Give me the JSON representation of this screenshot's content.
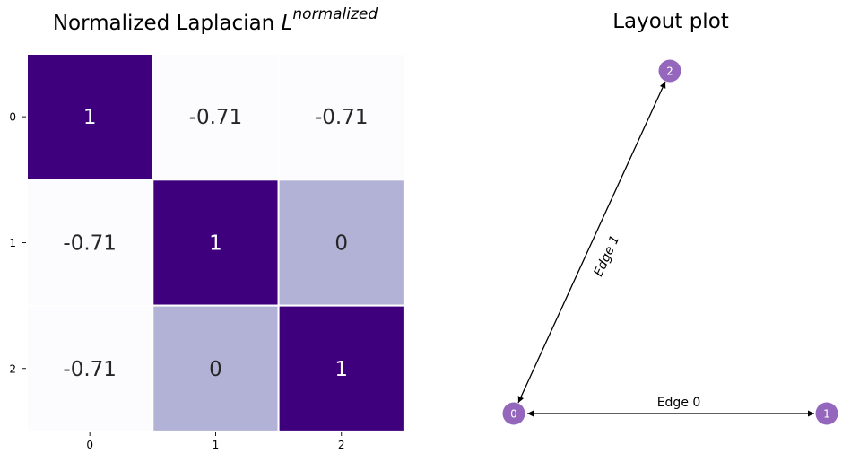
{
  "heatmap": {
    "title_main": "Normalized Laplacian ",
    "title_symbol": "L",
    "title_superscript": "normalized",
    "row_labels": [
      "0",
      "1",
      "2"
    ],
    "col_labels": [
      "0",
      "1",
      "2"
    ],
    "cell_labels": [
      [
        "1",
        "-0.71",
        "-0.71"
      ],
      [
        "-0.71",
        "1",
        "0"
      ],
      [
        "-0.71",
        "0",
        "1"
      ]
    ]
  },
  "layout": {
    "title": "Layout plot",
    "nodes": [
      "0",
      "1",
      "2"
    ],
    "edges": [
      {
        "label": "Edge 0",
        "source": "0",
        "target": "1"
      },
      {
        "label": "Edge 1",
        "source": "0",
        "target": "2"
      }
    ]
  },
  "colors": {
    "dark": "#3f007d",
    "mid": "#b2b2d6",
    "light": "#fcfbfd",
    "node": "#9467bd",
    "dark_text": "#ffffff",
    "light_text": "#262626"
  },
  "chart_data": [
    {
      "type": "heatmap",
      "title": "Normalized Laplacian L^normalized",
      "xlabel": "",
      "ylabel": "",
      "x": [
        "0",
        "1",
        "2"
      ],
      "y": [
        "0",
        "1",
        "2"
      ],
      "values": [
        [
          1,
          -0.71,
          -0.71
        ],
        [
          -0.71,
          1,
          0
        ],
        [
          -0.71,
          0,
          1
        ]
      ],
      "grid": false
    },
    {
      "type": "diagram",
      "title": "Layout plot",
      "nodes": [
        "0",
        "1",
        "2"
      ],
      "edges": [
        {
          "label": "Edge 0",
          "from": "0",
          "to": "1",
          "bidirectional": true
        },
        {
          "label": "Edge 1",
          "from": "0",
          "to": "2",
          "bidirectional": true
        }
      ]
    }
  ]
}
